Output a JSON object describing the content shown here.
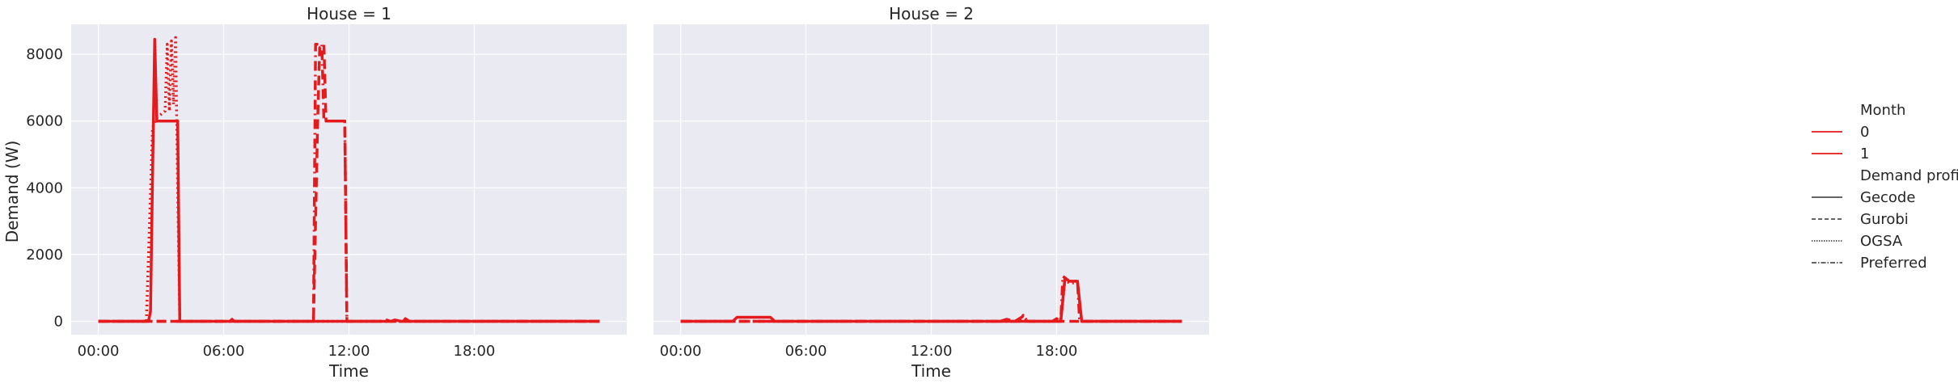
{
  "chart_data": {
    "type": "line",
    "ylabel": "Demand (W)",
    "xlabel": "Time",
    "x_unit": "hours",
    "xlim": [
      -1.3,
      25.3
    ],
    "ylim": [
      -400,
      8900
    ],
    "xticks": [
      0,
      6,
      12,
      18
    ],
    "xtick_labels": [
      "00:00",
      "06:00",
      "12:00",
      "18:00"
    ],
    "yticks": [
      0,
      2000,
      4000,
      6000,
      8000
    ],
    "ytick_labels": [
      "0",
      "2000",
      "4000",
      "6000",
      "8000"
    ],
    "grid": true,
    "colors": {
      "panel_bg": "#eaeaf2",
      "grid": "#ffffff",
      "line": "#e41a1c"
    },
    "legend": {
      "placement": "right",
      "hue_title": "Month",
      "hue_entries": [
        "0",
        "1"
      ],
      "style_title": "Demand profile",
      "style_entries": [
        "Gecode",
        "Gurobi",
        "OGSA",
        "Preferred"
      ]
    },
    "panels": [
      {
        "title": "House = 1",
        "series": [
          {
            "name": "Gecode",
            "dash": "solid",
            "points": [
              [
                0,
                0
              ],
              [
                2.4,
                0
              ],
              [
                2.5,
                300
              ],
              [
                2.6,
                4500
              ],
              [
                2.7,
                8450
              ],
              [
                2.8,
                6000
              ],
              [
                3.7,
                6000
              ],
              [
                3.8,
                6000
              ],
              [
                3.9,
                0
              ],
              [
                6.3,
                0
              ],
              [
                6.4,
                60
              ],
              [
                6.5,
                0
              ],
              [
                14.0,
                0
              ],
              [
                14.2,
                40
              ],
              [
                14.5,
                0
              ],
              [
                24,
                0
              ]
            ]
          },
          {
            "name": "Gurobi",
            "dash": "dashed",
            "points": [
              [
                0,
                0
              ],
              [
                10.3,
                0
              ],
              [
                10.5,
                6000
              ],
              [
                10.6,
                8200
              ],
              [
                10.8,
                8300
              ],
              [
                10.9,
                6000
              ],
              [
                11.8,
                6000
              ],
              [
                11.9,
                0
              ],
              [
                13.5,
                0
              ],
              [
                13.7,
                60
              ],
              [
                14.0,
                0
              ],
              [
                24,
                0
              ]
            ]
          },
          {
            "name": "OGSA",
            "dash": "dotted",
            "points": [
              [
                0,
                0
              ],
              [
                2.3,
                0
              ],
              [
                2.6,
                5800
              ],
              [
                2.8,
                6100
              ],
              [
                3.2,
                6300
              ],
              [
                3.3,
                8300
              ],
              [
                3.4,
                6300
              ],
              [
                3.5,
                8400
              ],
              [
                3.6,
                6500
              ],
              [
                3.7,
                8500
              ],
              [
                3.8,
                4000
              ],
              [
                3.9,
                0
              ],
              [
                24,
                0
              ]
            ]
          },
          {
            "name": "Preferred",
            "dash": "dashdot",
            "points": [
              [
                0,
                0
              ],
              [
                10.3,
                0
              ],
              [
                10.4,
                8300
              ],
              [
                10.7,
                8300
              ],
              [
                10.8,
                6000
              ],
              [
                11.8,
                6000
              ],
              [
                11.9,
                0
              ],
              [
                14.6,
                0
              ],
              [
                14.7,
                80
              ],
              [
                14.9,
                0
              ],
              [
                24,
                0
              ]
            ]
          }
        ]
      },
      {
        "title": "House = 2",
        "series": [
          {
            "name": "Gecode",
            "dash": "solid",
            "points": [
              [
                0,
                0
              ],
              [
                2.5,
                0
              ],
              [
                2.7,
                120
              ],
              [
                4.3,
                120
              ],
              [
                4.5,
                0
              ],
              [
                18.2,
                0
              ],
              [
                18.4,
                1300
              ],
              [
                18.6,
                1200
              ],
              [
                19.0,
                1200
              ],
              [
                19.2,
                0
              ],
              [
                24,
                0
              ]
            ]
          },
          {
            "name": "Gurobi",
            "dash": "dashed",
            "points": [
              [
                0,
                0
              ],
              [
                15.3,
                0
              ],
              [
                15.6,
                60
              ],
              [
                16.0,
                0
              ],
              [
                16.4,
                150
              ],
              [
                16.6,
                0
              ],
              [
                24,
                0
              ]
            ]
          },
          {
            "name": "OGSA",
            "dash": "dotted",
            "points": [
              [
                0,
                0
              ],
              [
                16.2,
                0
              ],
              [
                16.4,
                180
              ],
              [
                16.6,
                0
              ],
              [
                18.2,
                0
              ],
              [
                18.4,
                1250
              ],
              [
                18.6,
                1150
              ],
              [
                19.0,
                1150
              ],
              [
                19.2,
                0
              ],
              [
                24,
                0
              ]
            ]
          },
          {
            "name": "Preferred",
            "dash": "dashdot",
            "points": [
              [
                0,
                0
              ],
              [
                17.8,
                0
              ],
              [
                18.0,
                80
              ],
              [
                18.2,
                0
              ],
              [
                18.3,
                1350
              ],
              [
                18.6,
                1200
              ],
              [
                19.0,
                1200
              ],
              [
                19.1,
                0
              ],
              [
                24,
                0
              ]
            ]
          }
        ]
      }
    ]
  }
}
